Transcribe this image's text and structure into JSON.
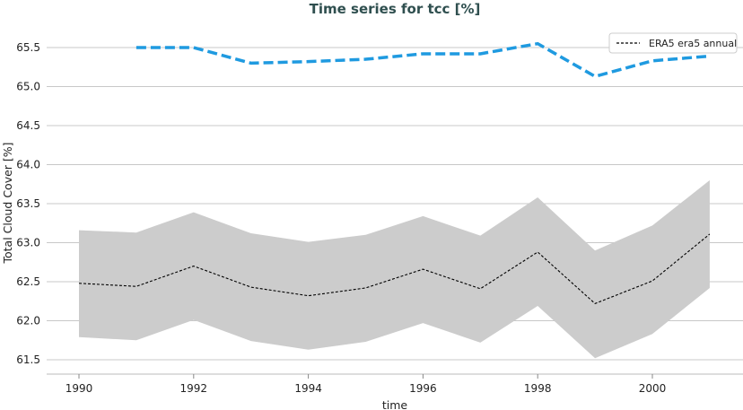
{
  "chart_data": {
    "type": "line",
    "title": "Time series for tcc [%]",
    "xlabel": "time",
    "ylabel": "Total Cloud Cover [%]",
    "xlim": [
      1989.4,
      2001.6
    ],
    "ylim": [
      61.35,
      65.65
    ],
    "xticks": [
      "1990",
      "1992",
      "1994",
      "1996",
      "1998",
      "2000"
    ],
    "yticks": [
      "61.5",
      "62.0",
      "62.5",
      "63.0",
      "63.5",
      "64.0",
      "64.5",
      "65.0",
      "65.5"
    ],
    "grid": "horizontal",
    "legend_position": "top-right",
    "series": [
      {
        "name": "ERA5 era5 annual",
        "style": "dashed",
        "color": "#000000",
        "x": [
          1990,
          1991,
          1992,
          1993,
          1994,
          1995,
          1996,
          1997,
          1998,
          1999,
          2000,
          2001
        ],
        "y": [
          62.48,
          62.44,
          62.7,
          62.43,
          62.32,
          62.42,
          62.66,
          62.41,
          62.88,
          62.22,
          62.51,
          63.11
        ],
        "band_upper": [
          63.16,
          63.13,
          63.39,
          63.12,
          63.01,
          63.1,
          63.34,
          63.09,
          63.58,
          62.9,
          63.22,
          63.8
        ],
        "band_lower": [
          61.79,
          61.75,
          62.01,
          61.74,
          61.63,
          61.73,
          61.97,
          61.72,
          62.19,
          61.52,
          61.83,
          62.42
        ],
        "band_color": "#cccccc"
      },
      {
        "style": "dashed",
        "color": "#1f9ae0",
        "x": [
          1991,
          1992,
          1993,
          1994,
          1995,
          1996,
          1997,
          1998,
          1999,
          2000,
          2001
        ],
        "y": [
          65.5,
          65.5,
          65.3,
          65.32,
          65.35,
          65.42,
          65.42,
          65.55,
          65.13,
          65.33,
          65.39
        ]
      }
    ]
  }
}
